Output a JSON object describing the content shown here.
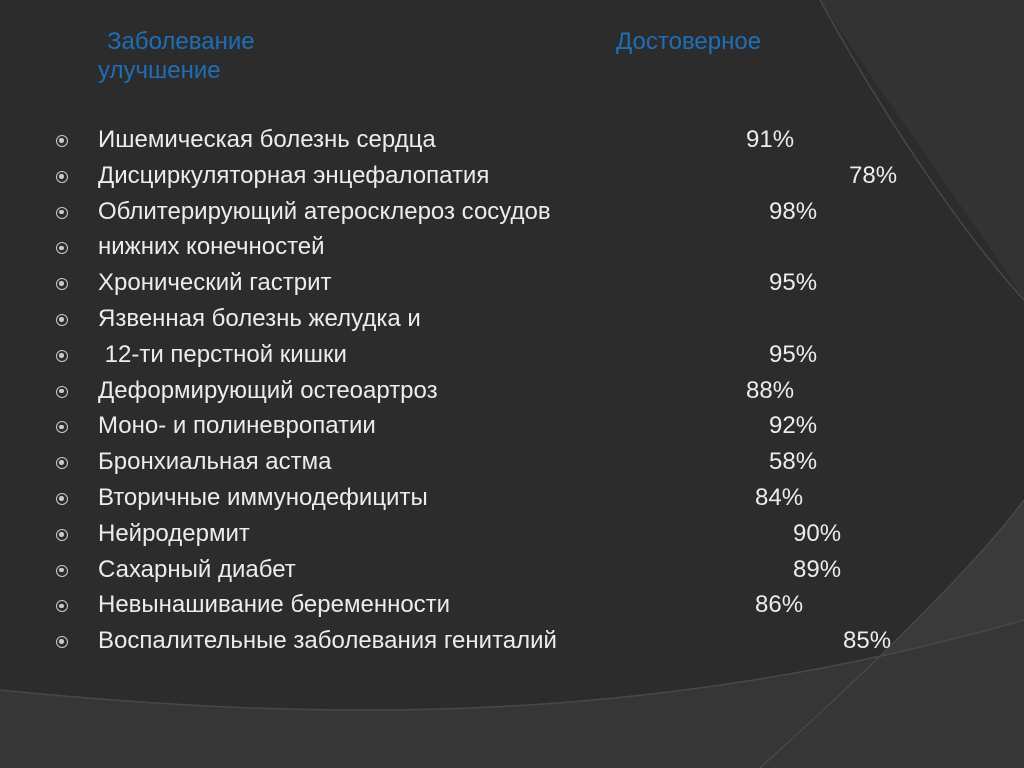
{
  "header": {
    "disease_label": "Заболевание",
    "improvement_label_line1": "Достоверное",
    "improvement_label_line2": "улучшение"
  },
  "rows": [
    {
      "label": "Ишемическая болезнь сердца",
      "value": "91%"
    },
    {
      "label": "Дисциркуляторная энцефалопатия",
      "value": "78%"
    },
    {
      "label": "Облитерирующий атеросклероз сосудов",
      "value": "98%"
    },
    {
      "label": "нижних конечностей",
      "value": ""
    },
    {
      "label": "Хронический гастрит",
      "value": "95%"
    },
    {
      "label": "Язвенная болезнь желудка и",
      "value": ""
    },
    {
      "label": " 12-ти перстной кишки",
      "value": "95%"
    },
    {
      "label": "Деформирующий остеоартроз",
      "value": "88%"
    },
    {
      "label": "Моно- и полиневропатии",
      "value": "92%"
    },
    {
      "label": "Бронхиальная астма",
      "value": "58%"
    },
    {
      "label": "Вторичные иммунодефициты",
      "value": "84%"
    },
    {
      "label": "Нейродермит",
      "value": "90%"
    },
    {
      "label": "Сахарный диабет",
      "value": "89%"
    },
    {
      "label": "Невынашивание беременности",
      "value": "86%"
    },
    {
      "label": "Воспалительные заболевания гениталий",
      "value": "85%"
    }
  ],
  "colors": {
    "background": "#2c2c2c",
    "header_text": "#1f6eb4",
    "body_text": "#ececec",
    "bullet": "#c9c9c9"
  },
  "icons": {
    "bullet": "circle-bullet-icon"
  }
}
